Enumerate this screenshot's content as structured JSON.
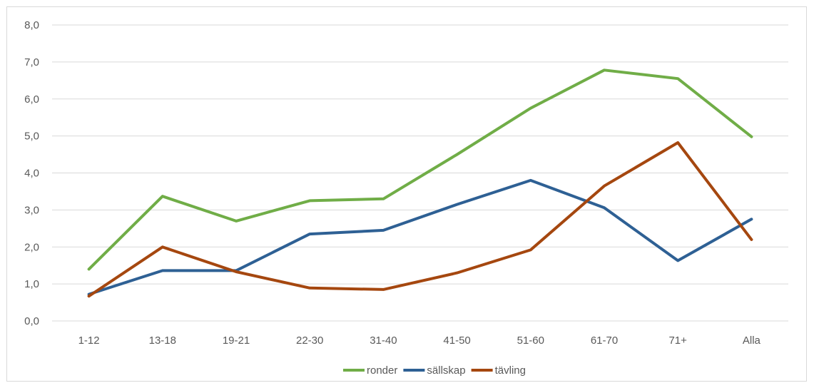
{
  "chart_data": {
    "type": "line",
    "title": "",
    "xlabel": "",
    "ylabel": "",
    "categories": [
      "1-12",
      "13-18",
      "19-21",
      "22-30",
      "31-40",
      "41-50",
      "51-60",
      "61-70",
      "71+",
      "Alla"
    ],
    "ylim": [
      0,
      8
    ],
    "ytick_values": [
      0,
      1,
      2,
      3,
      4,
      5,
      6,
      7,
      8
    ],
    "ytick_labels": [
      "0,0",
      "1,0",
      "2,0",
      "3,0",
      "4,0",
      "5,0",
      "6,0",
      "7,0",
      "8,0"
    ],
    "grid": "horizontal",
    "legend_position": "bottom",
    "series": [
      {
        "name": "ronder",
        "color": "#70ad47",
        "values": [
          1.4,
          3.37,
          2.7,
          3.25,
          3.3,
          4.5,
          5.75,
          6.78,
          6.55,
          4.98
        ]
      },
      {
        "name": "sällskap",
        "color": "#2e6094",
        "values": [
          0.72,
          1.36,
          1.36,
          2.35,
          2.45,
          3.15,
          3.8,
          3.06,
          1.63,
          2.75
        ]
      },
      {
        "name": "tävling",
        "color": "#a5470f",
        "values": [
          0.67,
          2.0,
          1.33,
          0.89,
          0.85,
          1.3,
          1.92,
          3.65,
          4.82,
          2.2
        ]
      }
    ]
  }
}
